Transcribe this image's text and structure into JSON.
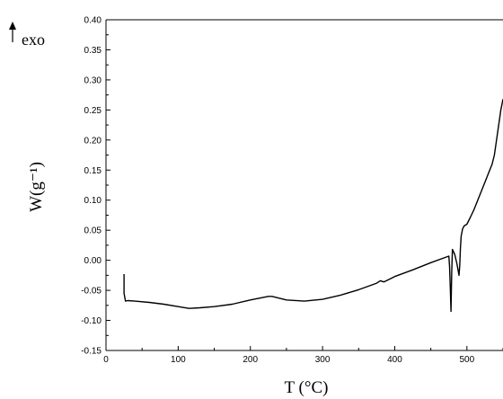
{
  "chart_data": {
    "type": "line",
    "xlabel": "T (°C)",
    "ylabel": "W(g⁻¹)",
    "annotation": "exo",
    "annotation_arrow": "up",
    "xlim": [
      0,
      550
    ],
    "ylim": [
      -0.15,
      0.4
    ],
    "xticks": [
      0,
      100,
      200,
      300,
      400,
      500
    ],
    "xtick_labels": [
      "0",
      "100",
      "200",
      "300",
      "400",
      "500"
    ],
    "yticks": [
      -0.15,
      -0.1,
      -0.05,
      0.0,
      0.05,
      0.1,
      0.15,
      0.2,
      0.25,
      0.3,
      0.35,
      0.4
    ],
    "ytick_labels": [
      "-0.15",
      "-0.10",
      "-0.05",
      "0.00",
      "0.05",
      "0.10",
      "0.15",
      "0.20",
      "0.25",
      "0.30",
      "0.35",
      "0.40"
    ],
    "grid": false,
    "line_color": "#000000",
    "series": [
      {
        "x": [
          25,
          25,
          27,
          30,
          40,
          60,
          80,
          100,
          115,
          130,
          150,
          175,
          200,
          225,
          230,
          250,
          275,
          300,
          325,
          350,
          375,
          380,
          385,
          400,
          425,
          450,
          475,
          476,
          477,
          478,
          479,
          480,
          483,
          486,
          488,
          489,
          490,
          491,
          492,
          494,
          496,
          500,
          505,
          510,
          515,
          520,
          525,
          530,
          535,
          538,
          541,
          544,
          547,
          550
        ],
        "y": [
          -0.023,
          -0.055,
          -0.068,
          -0.067,
          -0.068,
          -0.07,
          -0.073,
          -0.077,
          -0.08,
          -0.079,
          -0.077,
          -0.073,
          -0.066,
          -0.06,
          -0.06,
          -0.066,
          -0.068,
          -0.065,
          -0.058,
          -0.049,
          -0.038,
          -0.034,
          -0.036,
          -0.027,
          -0.016,
          -0.004,
          0.007,
          -0.01,
          -0.045,
          -0.085,
          -0.02,
          0.018,
          0.01,
          -0.005,
          -0.018,
          -0.025,
          -0.01,
          0.02,
          0.04,
          0.052,
          0.057,
          0.06,
          0.072,
          0.085,
          0.1,
          0.115,
          0.13,
          0.145,
          0.16,
          0.175,
          0.2,
          0.225,
          0.25,
          0.268
        ]
      }
    ]
  }
}
